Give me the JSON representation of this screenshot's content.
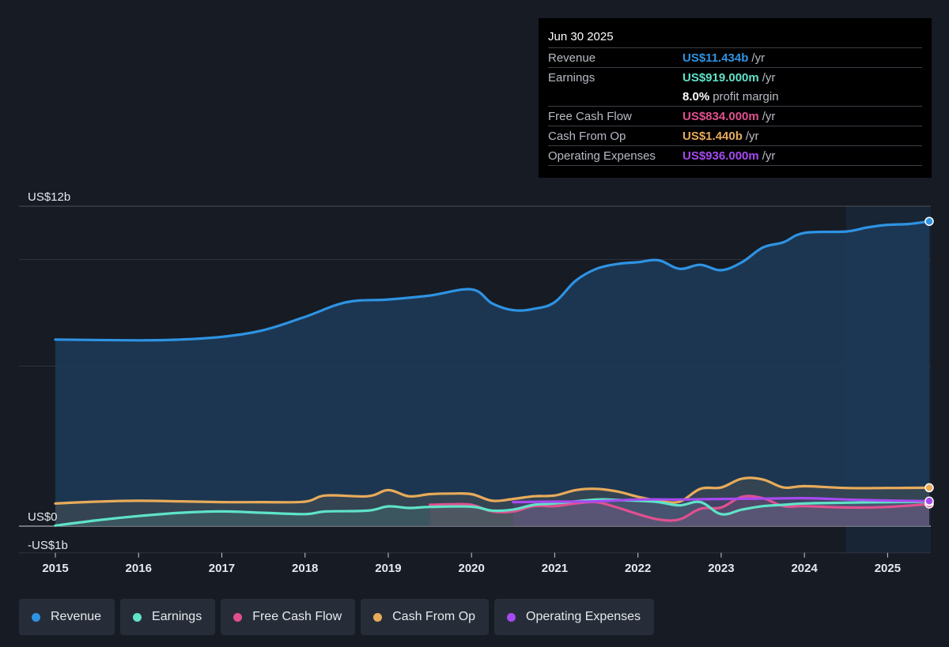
{
  "tooltip": {
    "date": "Jun 30 2025",
    "rows": [
      {
        "label": "Revenue",
        "value": "US$11.434b",
        "suffix": "/yr",
        "color": "#2e93e3"
      },
      {
        "label": "Earnings",
        "value": "US$919.000m",
        "suffix": "/yr",
        "color": "#5fe3c9"
      },
      {
        "label": "",
        "value": "8.0%",
        "suffix": "profit margin",
        "color": "#ffffff"
      },
      {
        "label": "Free Cash Flow",
        "value": "US$834.000m",
        "suffix": "/yr",
        "color": "#e0508f"
      },
      {
        "label": "Cash From Op",
        "value": "US$1.440b",
        "suffix": "/yr",
        "color": "#e8ab5a"
      },
      {
        "label": "Operating Expenses",
        "value": "US$936.000m",
        "suffix": "/yr",
        "color": "#a64af0"
      }
    ]
  },
  "legend": [
    {
      "label": "Revenue",
      "color": "#2e93e3"
    },
    {
      "label": "Earnings",
      "color": "#5fe3c9"
    },
    {
      "label": "Free Cash Flow",
      "color": "#e0508f"
    },
    {
      "label": "Cash From Op",
      "color": "#e8ab5a"
    },
    {
      "label": "Operating Expenses",
      "color": "#a64af0"
    }
  ],
  "chart_data": {
    "type": "area",
    "ylim": [
      -1,
      12
    ],
    "y_unit": "US$ billions",
    "y_tick_labels": [
      {
        "value": 12,
        "label": "US$12b"
      },
      {
        "value": 0,
        "label": "US$0"
      },
      {
        "value": -1,
        "label": "-US$1b"
      }
    ],
    "x_range": [
      2015,
      2025.5
    ],
    "x_ticks": [
      "2015",
      "2016",
      "2017",
      "2018",
      "2019",
      "2020",
      "2021",
      "2022",
      "2023",
      "2024",
      "2025"
    ],
    "grid": true,
    "forecast_shade_from": 2024.5,
    "series": [
      {
        "name": "Revenue",
        "color": "#2e93e3",
        "fill": true,
        "points": [
          [
            2015,
            7.0
          ],
          [
            2016,
            6.97
          ],
          [
            2016.5,
            7.0
          ],
          [
            2017,
            7.1
          ],
          [
            2017.5,
            7.35
          ],
          [
            2018,
            7.85
          ],
          [
            2018.5,
            8.4
          ],
          [
            2019,
            8.5
          ],
          [
            2019.5,
            8.65
          ],
          [
            2020,
            8.88
          ],
          [
            2020.25,
            8.35
          ],
          [
            2020.5,
            8.1
          ],
          [
            2020.75,
            8.15
          ],
          [
            2021,
            8.4
          ],
          [
            2021.25,
            9.2
          ],
          [
            2021.5,
            9.65
          ],
          [
            2021.75,
            9.83
          ],
          [
            2022,
            9.9
          ],
          [
            2022.25,
            9.97
          ],
          [
            2022.5,
            9.65
          ],
          [
            2022.75,
            9.8
          ],
          [
            2023,
            9.6
          ],
          [
            2023.25,
            9.9
          ],
          [
            2023.5,
            10.45
          ],
          [
            2023.75,
            10.65
          ],
          [
            2024,
            11.0
          ],
          [
            2024.5,
            11.05
          ],
          [
            2024.75,
            11.2
          ],
          [
            2025,
            11.3
          ],
          [
            2025.25,
            11.33
          ],
          [
            2025.5,
            11.43
          ]
        ]
      },
      {
        "name": "Earnings",
        "color": "#5fe3c9",
        "fill": false,
        "points": [
          [
            2015,
            0.02
          ],
          [
            2015.5,
            0.22
          ],
          [
            2016,
            0.38
          ],
          [
            2016.5,
            0.5
          ],
          [
            2017,
            0.55
          ],
          [
            2017.5,
            0.5
          ],
          [
            2018,
            0.45
          ],
          [
            2018.25,
            0.55
          ],
          [
            2018.75,
            0.58
          ],
          [
            2019,
            0.74
          ],
          [
            2019.25,
            0.68
          ],
          [
            2019.5,
            0.72
          ],
          [
            2020,
            0.73
          ],
          [
            2020.25,
            0.58
          ],
          [
            2020.5,
            0.62
          ],
          [
            2020.75,
            0.8
          ],
          [
            2021,
            0.85
          ],
          [
            2021.5,
            1.0
          ],
          [
            2021.75,
            0.98
          ],
          [
            2022,
            0.95
          ],
          [
            2022.25,
            0.9
          ],
          [
            2022.5,
            0.78
          ],
          [
            2022.75,
            0.9
          ],
          [
            2023,
            0.45
          ],
          [
            2023.25,
            0.62
          ],
          [
            2023.5,
            0.75
          ],
          [
            2023.75,
            0.8
          ],
          [
            2024,
            0.85
          ],
          [
            2024.5,
            0.88
          ],
          [
            2025,
            0.9
          ],
          [
            2025.5,
            0.92
          ]
        ]
      },
      {
        "name": "Free Cash Flow",
        "color": "#e0508f",
        "fill": false,
        "points": [
          [
            2019.5,
            0.8
          ],
          [
            2019.75,
            0.82
          ],
          [
            2020,
            0.8
          ],
          [
            2020.25,
            0.55
          ],
          [
            2020.5,
            0.55
          ],
          [
            2020.75,
            0.75
          ],
          [
            2021,
            0.75
          ],
          [
            2021.25,
            0.85
          ],
          [
            2021.5,
            0.9
          ],
          [
            2021.75,
            0.7
          ],
          [
            2022,
            0.45
          ],
          [
            2022.25,
            0.25
          ],
          [
            2022.5,
            0.25
          ],
          [
            2022.75,
            0.65
          ],
          [
            2023,
            0.7
          ],
          [
            2023.25,
            1.1
          ],
          [
            2023.5,
            1.05
          ],
          [
            2023.75,
            0.75
          ],
          [
            2024,
            0.75
          ],
          [
            2024.5,
            0.7
          ],
          [
            2025,
            0.72
          ],
          [
            2025.5,
            0.83
          ]
        ]
      },
      {
        "name": "Cash From Op",
        "color": "#e8ab5a",
        "fill": false,
        "points": [
          [
            2015,
            0.85
          ],
          [
            2015.5,
            0.92
          ],
          [
            2016,
            0.95
          ],
          [
            2016.5,
            0.93
          ],
          [
            2017,
            0.9
          ],
          [
            2017.5,
            0.9
          ],
          [
            2018,
            0.92
          ],
          [
            2018.25,
            1.15
          ],
          [
            2018.75,
            1.12
          ],
          [
            2019,
            1.35
          ],
          [
            2019.25,
            1.12
          ],
          [
            2019.5,
            1.2
          ],
          [
            2019.75,
            1.22
          ],
          [
            2020,
            1.2
          ],
          [
            2020.25,
            0.95
          ],
          [
            2020.5,
            1.02
          ],
          [
            2020.75,
            1.12
          ],
          [
            2021,
            1.15
          ],
          [
            2021.25,
            1.35
          ],
          [
            2021.5,
            1.4
          ],
          [
            2021.75,
            1.3
          ],
          [
            2022,
            1.1
          ],
          [
            2022.25,
            0.95
          ],
          [
            2022.5,
            0.92
          ],
          [
            2022.75,
            1.4
          ],
          [
            2023,
            1.45
          ],
          [
            2023.25,
            1.78
          ],
          [
            2023.5,
            1.75
          ],
          [
            2023.75,
            1.45
          ],
          [
            2024,
            1.5
          ],
          [
            2024.5,
            1.43
          ],
          [
            2025,
            1.43
          ],
          [
            2025.5,
            1.44
          ]
        ]
      },
      {
        "name": "Operating Expenses",
        "color": "#a64af0",
        "fill": false,
        "points": [
          [
            2020.5,
            0.9
          ],
          [
            2021,
            0.92
          ],
          [
            2021.5,
            0.93
          ],
          [
            2022,
            1.0
          ],
          [
            2022.5,
            1.0
          ],
          [
            2023,
            1.02
          ],
          [
            2023.5,
            1.03
          ],
          [
            2024,
            1.05
          ],
          [
            2024.5,
            1.0
          ],
          [
            2025,
            0.96
          ],
          [
            2025.5,
            0.94
          ]
        ]
      }
    ]
  }
}
